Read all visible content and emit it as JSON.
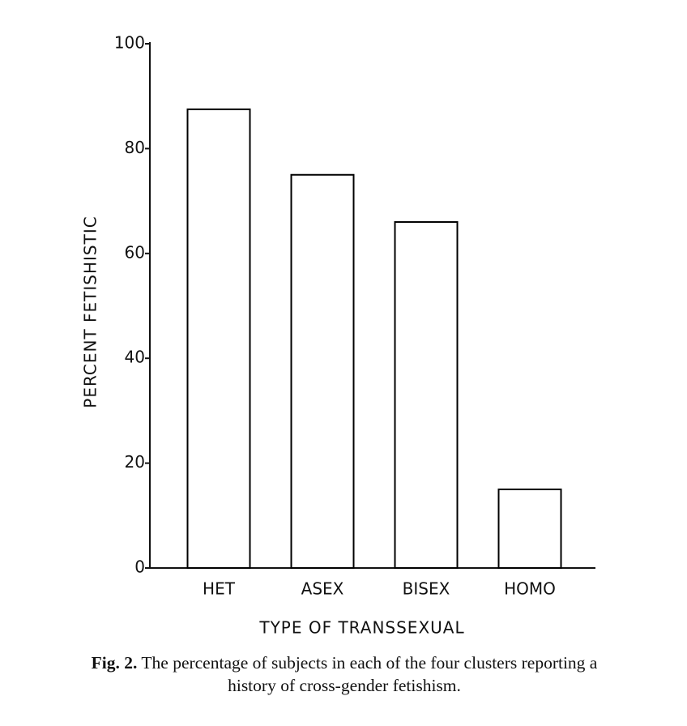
{
  "chart_data": {
    "type": "bar",
    "x_label": "TYPE OF TRANSSEXUAL",
    "y_label": "PERCENT FETISHISTIC",
    "categories": [
      "HET",
      "ASEX",
      "BISEX",
      "HOMO"
    ],
    "values": [
      87.5,
      75,
      66,
      15
    ],
    "color": "#ffffff",
    "edgecolor": "#000000",
    "ylim": [
      0,
      100
    ],
    "yticks": [
      0,
      20,
      40,
      60,
      80,
      100
    ],
    "grid": false,
    "caption_label": "Fig. 2.",
    "caption": "The percentage of subjects in each of the four clusters reporting a history of cross-gender fetishism."
  }
}
